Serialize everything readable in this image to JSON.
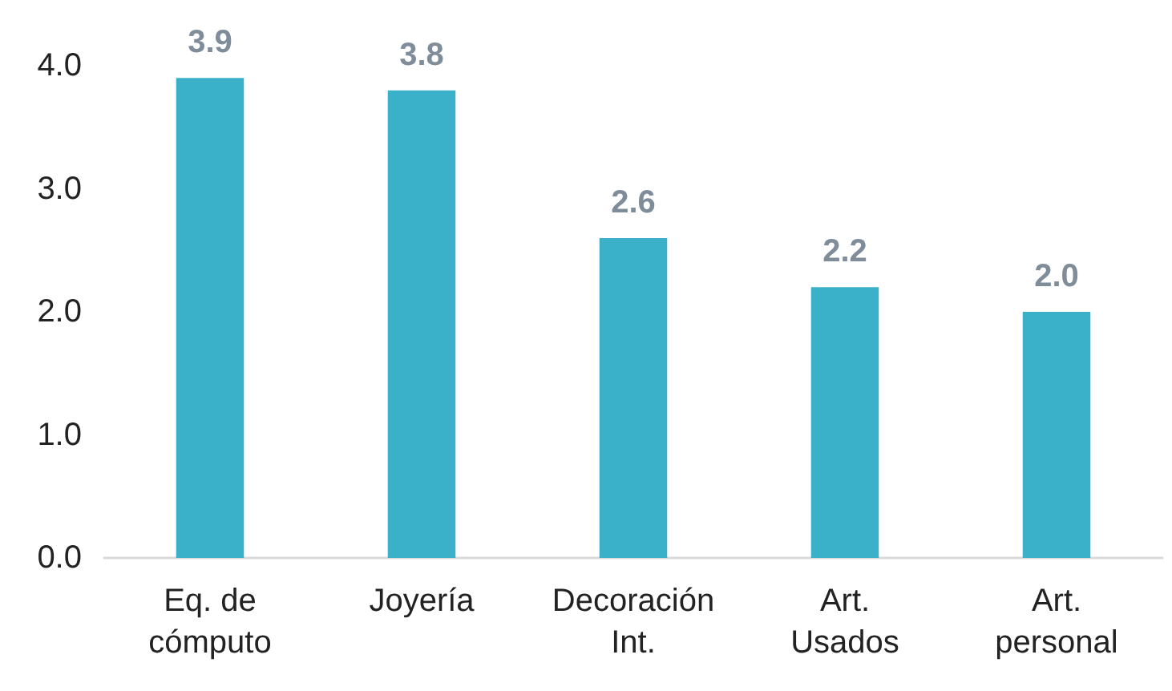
{
  "chart_data": {
    "type": "bar",
    "categories": [
      "Eq. de\ncómputo",
      "Joyería",
      "Decoración\nInt.",
      "Art.\nUsados",
      "Art.\npersonal"
    ],
    "values": [
      3.9,
      3.8,
      2.6,
      2.2,
      2.0
    ],
    "color": "#3bb0c9",
    "ylim": [
      0,
      4
    ],
    "yticks": [
      {
        "value": 0,
        "label": "0.0"
      },
      {
        "value": 1,
        "label": "1.0"
      },
      {
        "value": 2,
        "label": "2.0"
      },
      {
        "value": 3,
        "label": "3.0"
      },
      {
        "value": 4,
        "label": "4.0"
      }
    ],
    "value_labels": [
      "3.9",
      "3.8",
      "2.6",
      "2.2",
      "2.0"
    ],
    "grid": false
  }
}
